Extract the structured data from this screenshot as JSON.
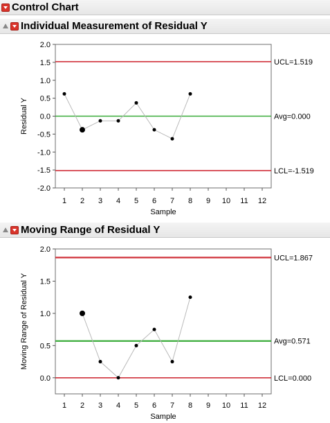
{
  "top_title": "Control Chart",
  "icons": {
    "menu": "red-dropdown-icon",
    "disclosure": "disclosure-triangle-icon"
  },
  "colors": {
    "limit": "#d0313a",
    "center": "#3aab3a",
    "data": "#000000",
    "connector": "#b9b9b9",
    "frame": "#6e6e6e"
  },
  "chart_data": [
    {
      "type": "line",
      "title": "Individual Measurement of Residual Y",
      "xlabel": "Sample",
      "ylabel": "Residual Y",
      "x": [
        1,
        2,
        3,
        4,
        5,
        6,
        7,
        8
      ],
      "values": [
        0.62,
        -0.38,
        -0.13,
        -0.13,
        0.37,
        -0.38,
        -0.63,
        0.62
      ],
      "highlight_x": [
        2
      ],
      "xlim": [
        0.5,
        12.5
      ],
      "ylim": [
        -2.0,
        2.0
      ],
      "xticks": [
        "1",
        "2",
        "3",
        "4",
        "5",
        "6",
        "7",
        "8",
        "9",
        "10",
        "11",
        "12"
      ],
      "yticks": [
        "-2.0",
        "-1.5",
        "-1.0",
        "-0.5",
        "0.0",
        "0.5",
        "1.0",
        "1.5",
        "2.0"
      ],
      "limits": [
        {
          "kind": "ucl",
          "value": 1.519,
          "label": "UCL=1.519"
        },
        {
          "kind": "avg",
          "value": 0.0,
          "label": "Avg=0.000"
        },
        {
          "kind": "lcl",
          "value": -1.519,
          "label": "LCL=-1.519"
        }
      ]
    },
    {
      "type": "line",
      "title": "Moving Range of Residual Y",
      "xlabel": "Sample",
      "ylabel": "Moving Range of Residual Y",
      "x": [
        2,
        3,
        4,
        5,
        6,
        7,
        8
      ],
      "values": [
        1.0,
        0.25,
        0.0,
        0.5,
        0.75,
        0.25,
        1.25
      ],
      "highlight_x": [
        2
      ],
      "xlim": [
        0.5,
        12.5
      ],
      "ylim": [
        -0.25,
        2.0
      ],
      "xticks": [
        "1",
        "2",
        "3",
        "4",
        "5",
        "6",
        "7",
        "8",
        "9",
        "10",
        "11",
        "12"
      ],
      "yticks": [
        "0.0",
        "0.5",
        "1.0",
        "1.5",
        "2.0"
      ],
      "limits": [
        {
          "kind": "ucl",
          "value": 1.867,
          "label": "UCL=1.867"
        },
        {
          "kind": "avg",
          "value": 0.571,
          "label": "Avg=0.571"
        },
        {
          "kind": "lcl",
          "value": 0.0,
          "label": "LCL=0.000"
        }
      ]
    }
  ]
}
